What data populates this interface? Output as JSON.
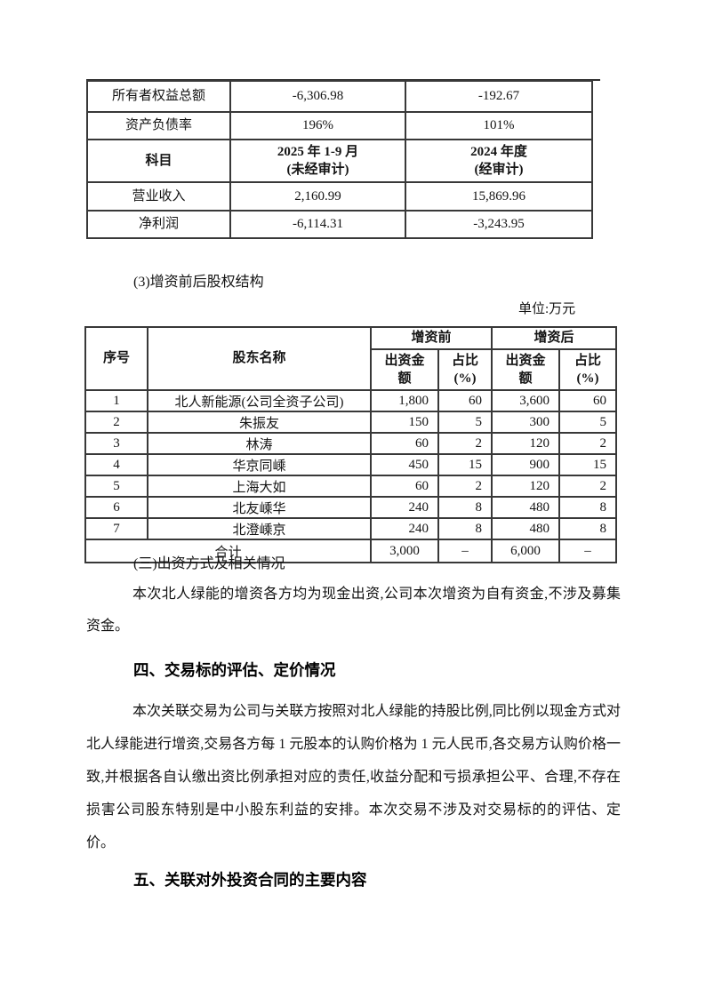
{
  "document": {
    "financial_table": {
      "rows": [
        {
          "label": "所有者权益总额",
          "period1": "-6,306.98",
          "period2": "-192.67",
          "bold": false
        },
        {
          "label": "资产负债率",
          "period1": "196%",
          "period2": "101%",
          "bold": false
        },
        {
          "label": "科目",
          "period1": "2025 年 1-9 月\n(未经审计)",
          "period2": "2024 年度\n(经审计)",
          "bold": true
        },
        {
          "label": "营业收入",
          "period1": "2,160.99",
          "period2": "15,869.96",
          "bold": false
        },
        {
          "label": "净利润",
          "period1": "-6,114.31",
          "period2": "-3,243.95",
          "bold": false
        }
      ]
    },
    "structure_heading": "(3)增资前后股权结构",
    "unit_label": "单位:万元",
    "equity_table": {
      "headers": {
        "index": "序号",
        "shareholder": "股东名称",
        "pre": "增资前",
        "post": "增资后",
        "amount": "出资金\n额",
        "ratio": "占比\n(%)"
      },
      "rows": [
        {
          "no": "1",
          "name": "北人新能源(公司全资子公司)",
          "pre_amount": "1,800",
          "pre_ratio": "60",
          "post_amount": "3,600",
          "post_ratio": "60"
        },
        {
          "no": "2",
          "name": "朱振友",
          "pre_amount": "150",
          "pre_ratio": "5",
          "post_amount": "300",
          "post_ratio": "5"
        },
        {
          "no": "3",
          "name": "林涛",
          "pre_amount": "60",
          "pre_ratio": "2",
          "post_amount": "120",
          "post_ratio": "2"
        },
        {
          "no": "4",
          "name": "华京同嵊",
          "pre_amount": "450",
          "pre_ratio": "15",
          "post_amount": "900",
          "post_ratio": "15"
        },
        {
          "no": "5",
          "name": "上海大如",
          "pre_amount": "60",
          "pre_ratio": "2",
          "post_amount": "120",
          "post_ratio": "2"
        },
        {
          "no": "6",
          "name": "北友嵊华",
          "pre_amount": "240",
          "pre_ratio": "8",
          "post_amount": "480",
          "post_ratio": "8"
        },
        {
          "no": "7",
          "name": "北澄嵊京",
          "pre_amount": "240",
          "pre_ratio": "8",
          "post_amount": "480",
          "post_ratio": "8"
        }
      ],
      "total": {
        "label": "合计",
        "pre_amount": "3,000",
        "pre_ratio": "–",
        "post_amount": "6,000",
        "post_ratio": "–"
      }
    },
    "method_heading": "(三)出资方式及相关情况",
    "funding_paragraph": "本次北人绿能的增资各方均为现金出资,公司本次增资为自有资金,不涉及募集资金。",
    "section4_heading": "四、交易标的评估、定价情况",
    "pricing_paragraph": "本次关联交易为公司与关联方按照对北人绿能的持股比例,同比例以现金方式对北人绿能进行增资,交易各方每 1 元股本的认购价格为 1 元人民币,各交易方认购价格一致,并根据各自认缴出资比例承担对应的责任,收益分配和亏损承担公平、合理,不存在损害公司股东特别是中小股东利益的安排。本次交易不涉及对交易标的的评估、定价。",
    "section5_heading": "五、关联对外投资合同的主要内容"
  }
}
